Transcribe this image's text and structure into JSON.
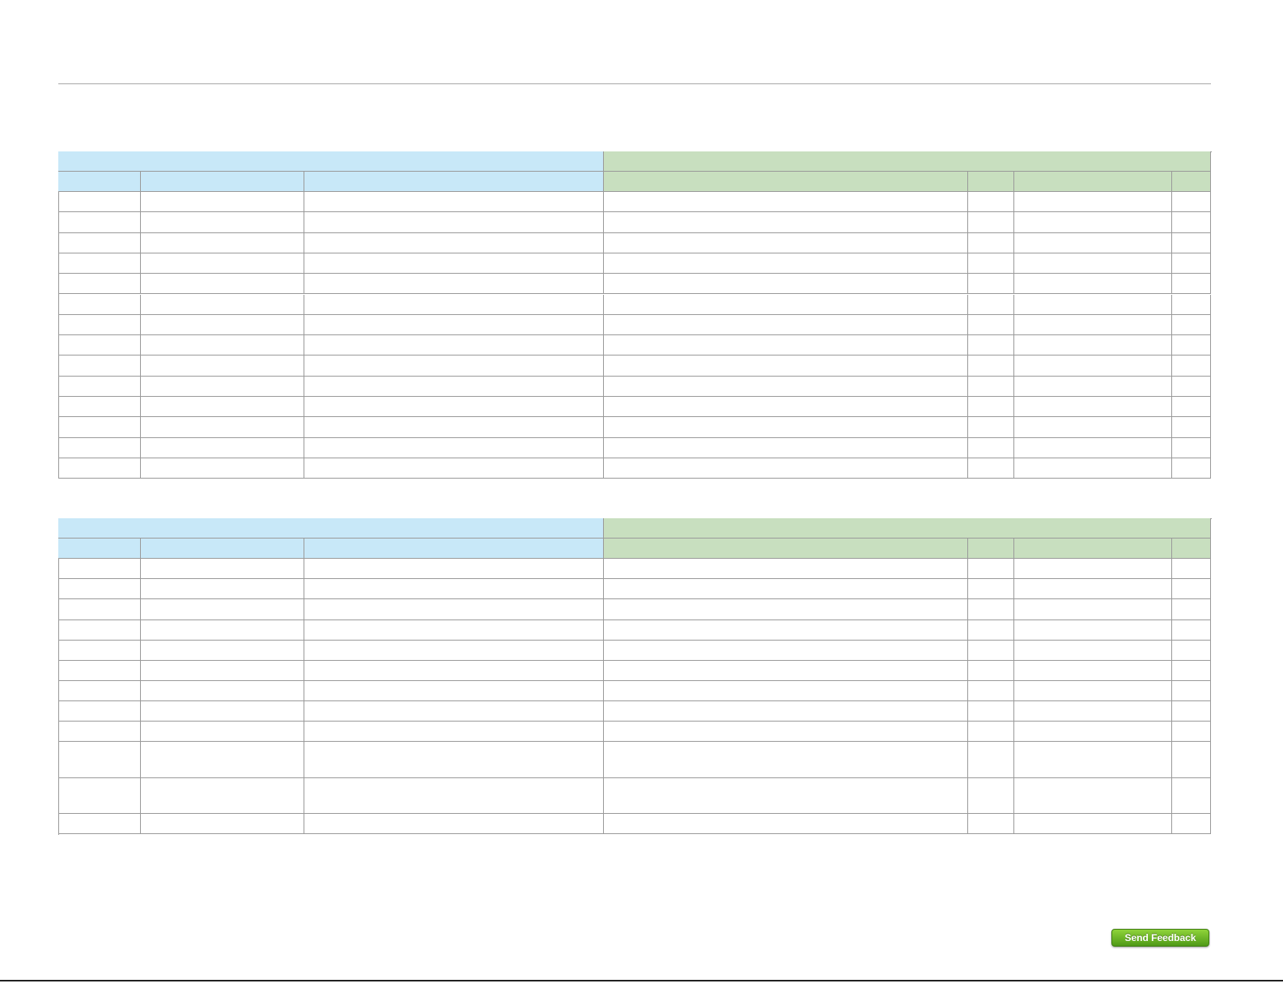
{
  "feedback_button": {
    "label": "Send Feedback"
  }
}
